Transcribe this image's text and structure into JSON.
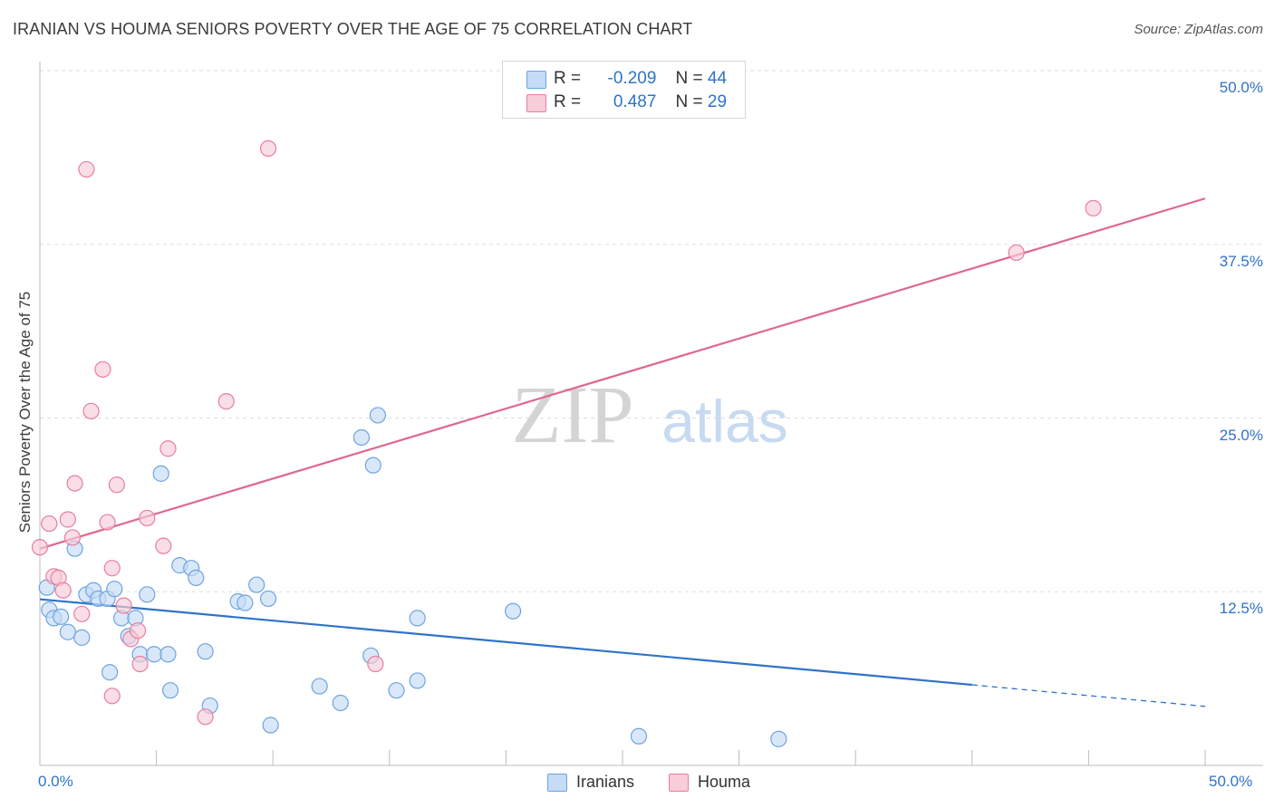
{
  "title": "IRANIAN VS HOUMA SENIORS POVERTY OVER THE AGE OF 75 CORRELATION CHART",
  "source": "Source: ZipAtlas.com",
  "watermark": {
    "zip": "ZIP",
    "atlas": "atlas"
  },
  "legend_top": {
    "rows": [
      {
        "r_label": "R =",
        "r_value": "-0.209",
        "n_label": "N =",
        "n_value": "44",
        "color": "#a8c8f0"
      },
      {
        "r_label": "R =",
        "r_value": "0.487",
        "n_label": "N =",
        "n_value": "29",
        "color": "#f5b8cb"
      }
    ]
  },
  "legend_bottom": {
    "items": [
      {
        "label": "Iranians",
        "color": "#a8c8f0"
      },
      {
        "label": "Houma",
        "color": "#f5b8cb"
      }
    ]
  },
  "chart_data": {
    "type": "scatter",
    "title": "IRANIAN VS HOUMA SENIORS POVERTY OVER THE AGE OF 75 CORRELATION CHART",
    "xlabel": "",
    "ylabel": "Seniors Poverty Over the Age of 75",
    "xlim": [
      0,
      50
    ],
    "ylim": [
      0,
      50
    ],
    "x_tick_labels": [
      "0.0%",
      "50.0%"
    ],
    "y_tick_labels": [
      "12.5%",
      "25.0%",
      "37.5%",
      "50.0%"
    ],
    "y_ticks": [
      12.5,
      25.0,
      37.5,
      50.0
    ],
    "grid": true,
    "series": [
      {
        "name": "Iranians",
        "color": "#6fa3e0",
        "fill": "#c5dbf6",
        "points": [
          [
            0.3,
            12.8
          ],
          [
            0.4,
            11.2
          ],
          [
            0.6,
            10.6
          ],
          [
            0.9,
            10.7
          ],
          [
            1.2,
            9.6
          ],
          [
            1.5,
            15.6
          ],
          [
            1.8,
            9.2
          ],
          [
            2.0,
            12.3
          ],
          [
            2.3,
            12.6
          ],
          [
            2.5,
            12.0
          ],
          [
            2.9,
            12.0
          ],
          [
            3.0,
            6.7
          ],
          [
            3.2,
            12.7
          ],
          [
            3.5,
            10.6
          ],
          [
            3.8,
            9.3
          ],
          [
            4.1,
            10.6
          ],
          [
            4.3,
            8.0
          ],
          [
            4.6,
            12.3
          ],
          [
            4.9,
            8.0
          ],
          [
            5.2,
            21.0
          ],
          [
            5.5,
            8.0
          ],
          [
            5.6,
            5.4
          ],
          [
            6.0,
            14.4
          ],
          [
            6.5,
            14.2
          ],
          [
            6.7,
            13.5
          ],
          [
            7.1,
            8.2
          ],
          [
            7.3,
            4.3
          ],
          [
            8.5,
            11.8
          ],
          [
            8.8,
            11.7
          ],
          [
            9.3,
            13.0
          ],
          [
            9.8,
            12.0
          ],
          [
            9.9,
            2.9
          ],
          [
            12.0,
            5.7
          ],
          [
            12.9,
            4.5
          ],
          [
            13.8,
            23.6
          ],
          [
            14.2,
            7.9
          ],
          [
            14.3,
            21.6
          ],
          [
            14.5,
            25.2
          ],
          [
            15.3,
            5.4
          ],
          [
            16.2,
            6.1
          ],
          [
            16.2,
            10.6
          ],
          [
            20.3,
            11.1
          ],
          [
            25.7,
            2.1
          ],
          [
            31.7,
            1.9
          ]
        ],
        "trend": {
          "x0": 0,
          "y0": 11.96,
          "x1": 40,
          "y1": 5.8,
          "dash_to_x": 50,
          "dash_to_y": 4.25
        }
      },
      {
        "name": "Houma",
        "color": "#e77ea0",
        "fill": "#f8ccd9",
        "points": [
          [
            0.0,
            15.7
          ],
          [
            0.4,
            17.4
          ],
          [
            0.6,
            13.6
          ],
          [
            0.8,
            13.5
          ],
          [
            1.0,
            12.6
          ],
          [
            1.2,
            17.7
          ],
          [
            1.4,
            16.4
          ],
          [
            1.5,
            20.3
          ],
          [
            1.8,
            10.9
          ],
          [
            2.0,
            42.9
          ],
          [
            2.2,
            25.5
          ],
          [
            2.7,
            28.5
          ],
          [
            2.9,
            17.5
          ],
          [
            3.1,
            14.2
          ],
          [
            3.1,
            5.0
          ],
          [
            3.3,
            20.2
          ],
          [
            3.6,
            11.5
          ],
          [
            3.9,
            9.1
          ],
          [
            4.2,
            9.7
          ],
          [
            4.3,
            7.3
          ],
          [
            4.6,
            17.8
          ],
          [
            5.3,
            15.8
          ],
          [
            5.5,
            22.8
          ],
          [
            7.1,
            3.5
          ],
          [
            8.0,
            26.2
          ],
          [
            9.8,
            44.4
          ],
          [
            14.4,
            7.3
          ],
          [
            41.9,
            36.9
          ],
          [
            45.2,
            40.1
          ]
        ],
        "trend": {
          "x0": 0,
          "y0": 15.6,
          "x1": 50,
          "y1": 40.8
        }
      }
    ]
  }
}
